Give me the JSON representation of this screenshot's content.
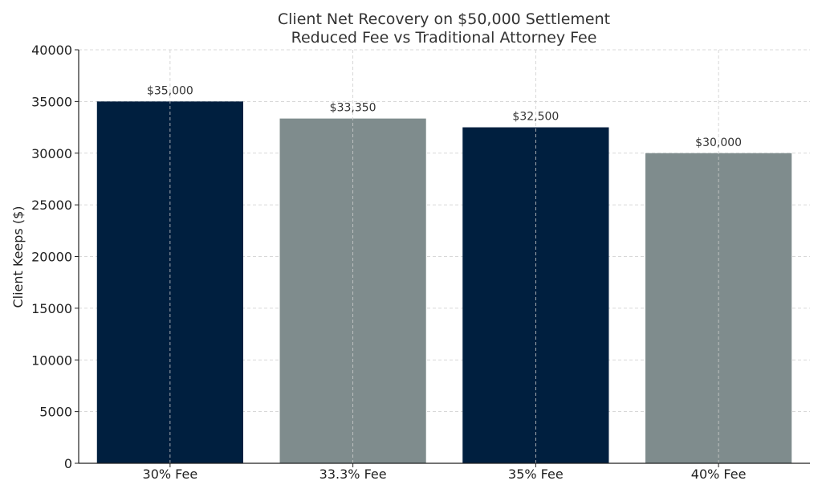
{
  "chart_data": {
    "type": "bar",
    "title": "Client Net Recovery on $50,000 Settlement",
    "subtitle": "Reduced Fee vs Traditional Attorney Fee",
    "xlabel": "",
    "ylabel": "Client Keeps ($)",
    "categories": [
      "30% Fee",
      "33.3% Fee",
      "35% Fee",
      "40% Fee"
    ],
    "values": [
      35000,
      33350,
      32500,
      30000
    ],
    "data_labels": [
      "$35,000",
      "$33,350",
      "$32,500",
      "$30,000"
    ],
    "colors": [
      "#001f3f",
      "#7f8c8d",
      "#001f3f",
      "#7f8c8d"
    ],
    "ylim": [
      0,
      40000
    ],
    "yticks": [
      0,
      5000,
      10000,
      15000,
      20000,
      25000,
      30000,
      35000,
      40000
    ],
    "ytick_labels": [
      "0",
      "5000",
      "10000",
      "15000",
      "20000",
      "25000",
      "30000",
      "35000",
      "40000"
    ],
    "grid": true,
    "legend": "none"
  }
}
